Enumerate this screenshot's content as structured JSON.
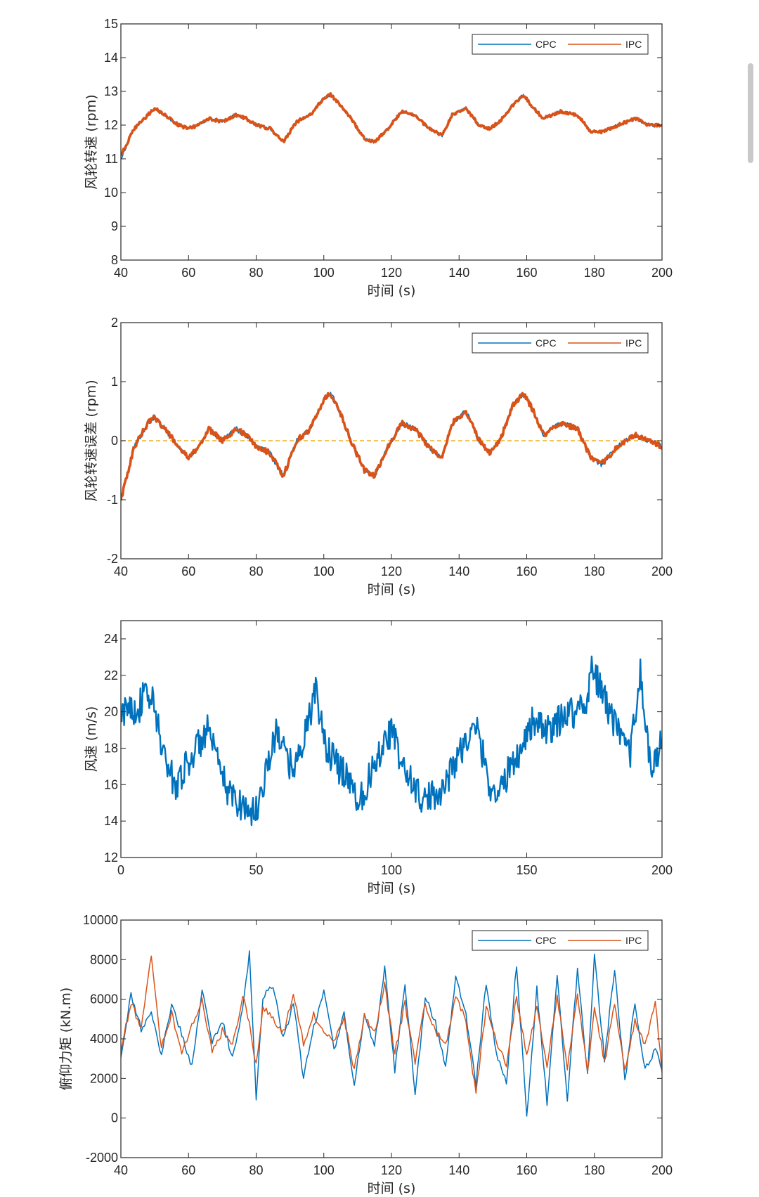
{
  "chart_data": [
    {
      "type": "line",
      "xlabel": "时间 (s)",
      "ylabel": "风轮转速 (rpm)",
      "xlim": [
        40,
        200
      ],
      "ylim": [
        8,
        15
      ],
      "xticks": [
        40,
        60,
        80,
        100,
        120,
        140,
        160,
        180,
        200
      ],
      "yticks": [
        8,
        9,
        10,
        11,
        12,
        13,
        14,
        15
      ],
      "legend": [
        "CPC",
        "IPC"
      ],
      "legend_position": "top-right",
      "series": [
        {
          "name": "CPC",
          "color": "#0072BD",
          "x": [
            40,
            44,
            48,
            50,
            53,
            57,
            60,
            63,
            66,
            70,
            74,
            77,
            80,
            84,
            88,
            92,
            96,
            100,
            102,
            104,
            108,
            112,
            115,
            119,
            123,
            127,
            131,
            135,
            138,
            142,
            146,
            149,
            152,
            156,
            159,
            162,
            165,
            170,
            175,
            179,
            182,
            187,
            192,
            196,
            200
          ],
          "y": [
            11.0,
            11.9,
            12.3,
            12.5,
            12.3,
            12.0,
            11.9,
            12.0,
            12.2,
            12.1,
            12.3,
            12.2,
            12.0,
            11.9,
            11.5,
            12.1,
            12.3,
            12.8,
            12.9,
            12.7,
            12.2,
            11.6,
            11.5,
            11.9,
            12.4,
            12.3,
            11.9,
            11.7,
            12.3,
            12.5,
            12.0,
            11.9,
            12.1,
            12.6,
            12.9,
            12.5,
            12.2,
            12.4,
            12.3,
            11.8,
            11.8,
            12.0,
            12.2,
            12.0,
            12.0
          ]
        },
        {
          "name": "IPC",
          "color": "#D95319",
          "x": [
            40,
            44,
            48,
            50,
            53,
            57,
            60,
            63,
            66,
            70,
            74,
            77,
            80,
            84,
            88,
            92,
            96,
            100,
            102,
            104,
            108,
            112,
            115,
            119,
            123,
            127,
            131,
            135,
            138,
            142,
            146,
            149,
            152,
            156,
            159,
            162,
            165,
            170,
            175,
            179,
            182,
            187,
            192,
            196,
            200
          ],
          "y": [
            11.1,
            11.9,
            12.3,
            12.5,
            12.3,
            12.0,
            11.9,
            12.0,
            12.2,
            12.1,
            12.3,
            12.2,
            12.0,
            11.9,
            11.5,
            12.1,
            12.3,
            12.8,
            12.9,
            12.7,
            12.2,
            11.6,
            11.5,
            11.9,
            12.4,
            12.3,
            11.9,
            11.7,
            12.3,
            12.5,
            12.0,
            11.9,
            12.1,
            12.6,
            12.9,
            12.5,
            12.2,
            12.4,
            12.3,
            11.8,
            11.8,
            12.0,
            12.2,
            12.0,
            12.0
          ]
        }
      ]
    },
    {
      "type": "line",
      "xlabel": "时间 (s)",
      "ylabel": "风轮转速误差 (rpm)",
      "xlim": [
        40,
        200
      ],
      "ylim": [
        -2,
        2
      ],
      "xticks": [
        40,
        60,
        80,
        100,
        120,
        140,
        160,
        180,
        200
      ],
      "yticks": [
        -2,
        -1,
        0,
        1,
        2
      ],
      "legend": [
        "CPC",
        "IPC"
      ],
      "legend_position": "top-right",
      "reference_line": {
        "y": 0,
        "color": "#EDB120",
        "style": "dashed"
      },
      "series": [
        {
          "name": "CPC",
          "color": "#0072BD",
          "x": [
            40,
            44,
            48,
            50,
            53,
            57,
            60,
            63,
            66,
            70,
            74,
            77,
            80,
            84,
            88,
            92,
            96,
            100,
            102,
            104,
            108,
            112,
            115,
            119,
            123,
            127,
            131,
            135,
            138,
            142,
            146,
            149,
            152,
            156,
            159,
            162,
            165,
            170,
            175,
            179,
            182,
            187,
            192,
            196,
            200
          ],
          "y": [
            -1.0,
            -0.1,
            0.3,
            0.4,
            0.2,
            -0.1,
            -0.3,
            -0.1,
            0.2,
            0.0,
            0.2,
            0.1,
            -0.1,
            -0.2,
            -0.6,
            0.0,
            0.2,
            0.7,
            0.8,
            0.6,
            0.0,
            -0.5,
            -0.6,
            -0.1,
            0.3,
            0.2,
            -0.1,
            -0.3,
            0.3,
            0.5,
            0.0,
            -0.2,
            0.0,
            0.6,
            0.8,
            0.5,
            0.1,
            0.3,
            0.2,
            -0.3,
            -0.4,
            -0.1,
            0.1,
            0.0,
            -0.1
          ]
        },
        {
          "name": "IPC",
          "color": "#D95319",
          "x": [
            40,
            44,
            48,
            50,
            53,
            57,
            60,
            63,
            66,
            70,
            74,
            77,
            80,
            84,
            88,
            92,
            96,
            100,
            102,
            104,
            108,
            112,
            115,
            119,
            123,
            127,
            131,
            135,
            138,
            142,
            146,
            149,
            152,
            156,
            159,
            162,
            165,
            170,
            175,
            179,
            182,
            187,
            192,
            196,
            200
          ],
          "y": [
            -1.0,
            -0.1,
            0.3,
            0.4,
            0.2,
            -0.1,
            -0.3,
            -0.1,
            0.2,
            0.0,
            0.2,
            0.1,
            -0.1,
            -0.2,
            -0.6,
            0.0,
            0.2,
            0.7,
            0.8,
            0.6,
            0.0,
            -0.5,
            -0.6,
            -0.1,
            0.3,
            0.2,
            -0.1,
            -0.3,
            0.3,
            0.5,
            0.0,
            -0.2,
            0.0,
            0.6,
            0.8,
            0.5,
            0.1,
            0.3,
            0.2,
            -0.3,
            -0.4,
            -0.1,
            0.1,
            0.0,
            -0.1
          ]
        }
      ]
    },
    {
      "type": "line",
      "xlabel": "时间 (s)",
      "ylabel": "风速 (m/s)",
      "xlim": [
        0,
        200
      ],
      "ylim": [
        12,
        25
      ],
      "xticks": [
        0,
        50,
        100,
        150,
        200
      ],
      "yticks": [
        12,
        14,
        16,
        18,
        20,
        22,
        24
      ],
      "legend": [],
      "series": [
        {
          "name": "风速",
          "color": "#0072BD",
          "x": [
            0,
            3,
            6,
            9,
            12,
            16,
            20,
            24,
            28,
            32,
            36,
            40,
            44,
            48,
            50,
            54,
            58,
            62,
            66,
            70,
            72,
            76,
            80,
            84,
            88,
            92,
            96,
            100,
            104,
            108,
            112,
            116,
            120,
            124,
            128,
            132,
            136,
            140,
            144,
            148,
            152,
            156,
            160,
            164,
            168,
            172,
            174,
            178,
            182,
            186,
            188,
            190,
            192,
            196,
            200
          ],
          "y": [
            19.5,
            20.5,
            20.0,
            21.0,
            20.5,
            17.5,
            16.0,
            17.0,
            18.0,
            19.0,
            17.0,
            15.5,
            15.0,
            14.5,
            14.5,
            17.0,
            19.0,
            17.0,
            17.5,
            20.0,
            21.0,
            18.0,
            17.0,
            16.5,
            15.0,
            16.5,
            18.0,
            19.0,
            17.0,
            16.0,
            15.0,
            15.5,
            16.0,
            17.5,
            18.5,
            19.0,
            16.0,
            15.5,
            17.0,
            18.0,
            19.5,
            19.0,
            19.0,
            20.0,
            20.0,
            20.5,
            22.5,
            21.0,
            19.5,
            18.0,
            17.5,
            20.0,
            22.0,
            16.5,
            18.5
          ]
        }
      ]
    },
    {
      "type": "line",
      "xlabel": "时间 (s)",
      "ylabel": "俯仰力矩 (kN.m)",
      "xlim": [
        40,
        200
      ],
      "ylim": [
        -2000,
        10000
      ],
      "xticks": [
        40,
        60,
        80,
        100,
        120,
        140,
        160,
        180,
        200
      ],
      "yticks": [
        -2000,
        0,
        2000,
        4000,
        6000,
        8000,
        10000
      ],
      "legend": [
        "CPC",
        "IPC"
      ],
      "legend_position": "top-right",
      "series": [
        {
          "name": "CPC",
          "color": "#0072BD",
          "x": [
            40,
            43,
            46,
            49,
            52,
            55,
            58,
            61,
            64,
            67,
            70,
            73,
            76,
            78,
            80,
            82,
            85,
            88,
            91,
            94,
            97,
            100,
            103,
            106,
            109,
            112,
            115,
            118,
            121,
            124,
            127,
            130,
            133,
            136,
            139,
            142,
            145,
            148,
            151,
            154,
            157,
            160,
            163,
            166,
            169,
            172,
            175,
            178,
            180,
            183,
            186,
            189,
            192,
            195,
            198,
            200
          ],
          "y": [
            3000,
            6200,
            4500,
            5200,
            3200,
            5800,
            4200,
            2600,
            6500,
            3800,
            4900,
            3000,
            5600,
            8300,
            1000,
            6200,
            6700,
            4000,
            5800,
            2000,
            4600,
            6500,
            3500,
            5200,
            1600,
            5300,
            3600,
            7700,
            2400,
            6800,
            1200,
            6100,
            4800,
            2600,
            7100,
            5200,
            1700,
            6800,
            3300,
            1700,
            7800,
            0,
            6600,
            800,
            7100,
            1000,
            7600,
            2200,
            8200,
            3000,
            7600,
            1800,
            5900,
            2400,
            3500,
            2400
          ]
        },
        {
          "name": "IPC",
          "color": "#D95319",
          "x": [
            40,
            43,
            46,
            49,
            52,
            55,
            58,
            61,
            64,
            67,
            70,
            73,
            76,
            78,
            80,
            82,
            85,
            88,
            91,
            94,
            97,
            100,
            103,
            106,
            109,
            112,
            115,
            118,
            121,
            124,
            127,
            130,
            133,
            136,
            139,
            142,
            145,
            148,
            151,
            154,
            157,
            160,
            163,
            166,
            169,
            172,
            175,
            178,
            180,
            183,
            186,
            189,
            192,
            195,
            198,
            200
          ],
          "y": [
            3500,
            5800,
            4600,
            8200,
            3500,
            5300,
            3200,
            4600,
            6000,
            3300,
            4400,
            3600,
            6200,
            4800,
            2600,
            5600,
            5000,
            4300,
            6200,
            3800,
            5200,
            4400,
            4000,
            5000,
            2400,
            5200,
            4300,
            6700,
            3300,
            5800,
            2800,
            5800,
            4400,
            3700,
            6200,
            4900,
            1200,
            5600,
            3800,
            2700,
            6100,
            3100,
            5600,
            2600,
            6200,
            2400,
            6200,
            2300,
            5700,
            2800,
            5800,
            2400,
            4900,
            3600,
            5900,
            2300
          ]
        }
      ]
    }
  ]
}
